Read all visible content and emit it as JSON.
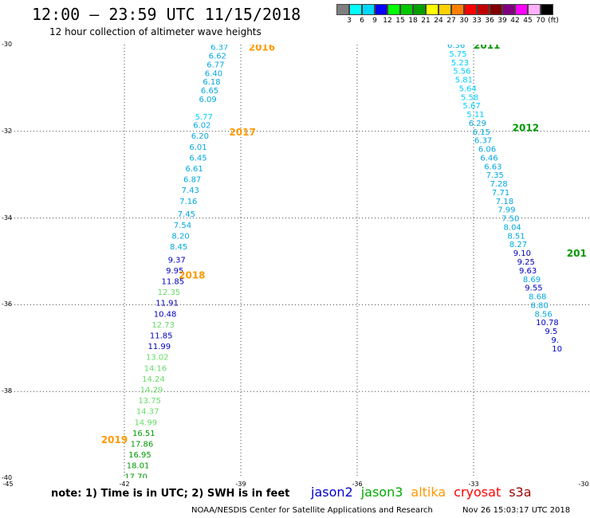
{
  "header": {
    "title": "12:00 — 23:59 UTC 11/15/2018",
    "subtitle": "12 hour collection of altimeter wave heights"
  },
  "colorbar": {
    "colors": [
      "#7f7f7f",
      "#00ffff",
      "#00d8ff",
      "#0000ff",
      "#00ff00",
      "#00c800",
      "#00a000",
      "#ffff00",
      "#ffd000",
      "#ff8000",
      "#ff0000",
      "#c00000",
      "#800000",
      "#800080",
      "#ff00ff",
      "#ffb0ff",
      "#000000"
    ],
    "labels": [
      "3",
      "6",
      "9",
      "12",
      "15",
      "18",
      "21",
      "24",
      "27",
      "30",
      "33",
      "36",
      "39",
      "42",
      "45",
      "70",
      "(ft)"
    ]
  },
  "axes": {
    "y_labels": [
      "-30",
      "-32",
      "-34",
      "-36",
      "-38",
      "-40"
    ],
    "x_labels": [
      "-45",
      "-42",
      "-39",
      "-36",
      "-33",
      "-30"
    ]
  },
  "note": "note:  1) Time is in UTC;  2) SWH is in feet",
  "legend": [
    {
      "name": "jason2",
      "color": "#0000cc"
    },
    {
      "name": "jason3",
      "color": "#00aa00"
    },
    {
      "name": "altika",
      "color": "#ff9900"
    },
    {
      "name": "cryosat",
      "color": "#ff0000"
    },
    {
      "name": "s3a",
      "color": "#990000"
    }
  ],
  "credit": "NOAA/NESDIS Center for Satellite Applications and Research",
  "timestamp": "Nov 26 15:03:17 UTC 2018",
  "map_data": {
    "lon_range": [
      -45,
      -30
    ],
    "lat_range": [
      -40,
      -30
    ],
    "time_labels": [
      {
        "text": "2016",
        "lon": -38.8,
        "lat": -30.05,
        "color": "#ff9900"
      },
      {
        "text": "2017",
        "lon": -39.3,
        "lat": -32.0,
        "color": "#ff9900"
      },
      {
        "text": "2018",
        "lon": -40.6,
        "lat": -35.3,
        "color": "#ff9900"
      },
      {
        "text": "2019",
        "lon": -42.6,
        "lat": -39.1,
        "color": "#ff9900"
      },
      {
        "text": "2011",
        "lon": -33.0,
        "lat": -30.0,
        "color": "#009900"
      },
      {
        "text": "2012",
        "lon": -32.0,
        "lat": -31.9,
        "color": "#009900"
      },
      {
        "text": "201",
        "lon": -30.6,
        "lat": -34.8,
        "color": "#009900"
      }
    ],
    "track_west": [
      {
        "v": "6.37",
        "lon": -39.55,
        "lat": -30.05,
        "c": "#00a8e0"
      },
      {
        "v": "6.62",
        "lon": -39.6,
        "lat": -30.25,
        "c": "#00a8e0"
      },
      {
        "v": "6.77",
        "lon": -39.65,
        "lat": -30.45,
        "c": "#00a8e0"
      },
      {
        "v": "6.40",
        "lon": -39.7,
        "lat": -30.65,
        "c": "#00a8e0"
      },
      {
        "v": "6.18",
        "lon": -39.75,
        "lat": -30.85,
        "c": "#00a8e0"
      },
      {
        "v": "6.65",
        "lon": -39.8,
        "lat": -31.05,
        "c": "#00a8e0"
      },
      {
        "v": "6.09",
        "lon": -39.85,
        "lat": -31.25,
        "c": "#00a8e0"
      },
      {
        "v": "5.77",
        "lon": -39.95,
        "lat": -31.65,
        "c": "#00d0ff"
      },
      {
        "v": "6.02",
        "lon": -40.0,
        "lat": -31.85,
        "c": "#00a8e0"
      },
      {
        "v": "6.20",
        "lon": -40.05,
        "lat": -32.1,
        "c": "#00a8e0"
      },
      {
        "v": "6.01",
        "lon": -40.1,
        "lat": -32.35,
        "c": "#00a8e0"
      },
      {
        "v": "6.45",
        "lon": -40.1,
        "lat": -32.6,
        "c": "#00a8e0"
      },
      {
        "v": "6.61",
        "lon": -40.2,
        "lat": -32.85,
        "c": "#00a8e0"
      },
      {
        "v": "6.87",
        "lon": -40.25,
        "lat": -33.1,
        "c": "#00a8e0"
      },
      {
        "v": "7.43",
        "lon": -40.3,
        "lat": -33.35,
        "c": "#00a8e0"
      },
      {
        "v": "7.16",
        "lon": -40.35,
        "lat": -33.6,
        "c": "#00a8e0"
      },
      {
        "v": "7.45",
        "lon": -40.4,
        "lat": -33.9,
        "c": "#00a8e0"
      },
      {
        "v": "7.54",
        "lon": -40.5,
        "lat": -34.15,
        "c": "#00a8e0"
      },
      {
        "v": "8.20",
        "lon": -40.55,
        "lat": -34.4,
        "c": "#00a8e0"
      },
      {
        "v": "8.45",
        "lon": -40.6,
        "lat": -34.65,
        "c": "#00a8e0"
      },
      {
        "v": "9.37",
        "lon": -40.65,
        "lat": -34.95,
        "c": "#0000c0"
      },
      {
        "v": "9.95",
        "lon": -40.7,
        "lat": -35.2,
        "c": "#0000c0"
      },
      {
        "v": "11.85",
        "lon": -40.75,
        "lat": -35.45,
        "c": "#0000c0"
      },
      {
        "v": "12.35",
        "lon": -40.85,
        "lat": -35.7,
        "c": "#66dd66"
      },
      {
        "v": "11.91",
        "lon": -40.9,
        "lat": -35.95,
        "c": "#0000c0"
      },
      {
        "v": "10.48",
        "lon": -40.95,
        "lat": -36.2,
        "c": "#0000c0"
      },
      {
        "v": "12.73",
        "lon": -41.0,
        "lat": -36.45,
        "c": "#66dd66"
      },
      {
        "v": "11.85",
        "lon": -41.05,
        "lat": -36.7,
        "c": "#0000c0"
      },
      {
        "v": "11.99",
        "lon": -41.1,
        "lat": -36.95,
        "c": "#0000c0"
      },
      {
        "v": "13.02",
        "lon": -41.15,
        "lat": -37.2,
        "c": "#66dd66"
      },
      {
        "v": "14.16",
        "lon": -41.2,
        "lat": -37.45,
        "c": "#66dd66"
      },
      {
        "v": "14.24",
        "lon": -41.25,
        "lat": -37.7,
        "c": "#66dd66"
      },
      {
        "v": "14.29",
        "lon": -41.3,
        "lat": -37.95,
        "c": "#66dd66"
      },
      {
        "v": "13.75",
        "lon": -41.35,
        "lat": -38.2,
        "c": "#66dd66"
      },
      {
        "v": "14.37",
        "lon": -41.4,
        "lat": -38.45,
        "c": "#66dd66"
      },
      {
        "v": "14.99",
        "lon": -41.45,
        "lat": -38.7,
        "c": "#66dd66"
      },
      {
        "v": "16.51",
        "lon": -41.5,
        "lat": -38.95,
        "c": "#009900"
      },
      {
        "v": "17.86",
        "lon": -41.55,
        "lat": -39.2,
        "c": "#009900"
      },
      {
        "v": "16.95",
        "lon": -41.6,
        "lat": -39.45,
        "c": "#009900"
      },
      {
        "v": "18.01",
        "lon": -41.65,
        "lat": -39.7,
        "c": "#009900"
      },
      {
        "v": "17.70",
        "lon": -41.7,
        "lat": -39.95,
        "c": "#009900"
      }
    ],
    "track_east": [
      {
        "v": "6.36",
        "lon": -33.45,
        "lat": -30.0,
        "c": "#00a8e0"
      },
      {
        "v": "5.75",
        "lon": -33.4,
        "lat": -30.2,
        "c": "#00d0ff"
      },
      {
        "v": "5.23",
        "lon": -33.35,
        "lat": -30.4,
        "c": "#00d0ff"
      },
      {
        "v": "5.56",
        "lon": -33.3,
        "lat": -30.6,
        "c": "#00d0ff"
      },
      {
        "v": "5.81",
        "lon": -33.25,
        "lat": -30.8,
        "c": "#00d0ff"
      },
      {
        "v": "5.64",
        "lon": -33.15,
        "lat": -31.0,
        "c": "#00d0ff"
      },
      {
        "v": "5.58",
        "lon": -33.1,
        "lat": -31.2,
        "c": "#00d0ff"
      },
      {
        "v": "5.67",
        "lon": -33.05,
        "lat": -31.4,
        "c": "#00d0ff"
      },
      {
        "v": "5.11",
        "lon": -32.95,
        "lat": -31.6,
        "c": "#00d0ff"
      },
      {
        "v": "6.29",
        "lon": -32.9,
        "lat": -31.8,
        "c": "#00a8e0"
      },
      {
        "v": "6.15",
        "lon": -32.8,
        "lat": -32.0,
        "c": "#00a8e0"
      },
      {
        "v": "6.37",
        "lon": -32.75,
        "lat": -32.2,
        "c": "#00a8e0"
      },
      {
        "v": "6.06",
        "lon": -32.65,
        "lat": -32.4,
        "c": "#00a8e0"
      },
      {
        "v": "6.46",
        "lon": -32.6,
        "lat": -32.6,
        "c": "#00a8e0"
      },
      {
        "v": "6.63",
        "lon": -32.5,
        "lat": -32.8,
        "c": "#00a8e0"
      },
      {
        "v": "7.35",
        "lon": -32.45,
        "lat": -33.0,
        "c": "#00a8e0"
      },
      {
        "v": "7.28",
        "lon": -32.35,
        "lat": -33.2,
        "c": "#00a8e0"
      },
      {
        "v": "7.71",
        "lon": -32.3,
        "lat": -33.4,
        "c": "#00a8e0"
      },
      {
        "v": "7.18",
        "lon": -32.2,
        "lat": -33.6,
        "c": "#00a8e0"
      },
      {
        "v": "7.99",
        "lon": -32.15,
        "lat": -33.8,
        "c": "#00a8e0"
      },
      {
        "v": "7.50",
        "lon": -32.05,
        "lat": -34.0,
        "c": "#00a8e0"
      },
      {
        "v": "8.04",
        "lon": -32.0,
        "lat": -34.2,
        "c": "#00a8e0"
      },
      {
        "v": "8.51",
        "lon": -31.9,
        "lat": -34.4,
        "c": "#00a8e0"
      },
      {
        "v": "8.27",
        "lon": -31.85,
        "lat": -34.6,
        "c": "#00a8e0"
      },
      {
        "v": "9.10",
        "lon": -31.75,
        "lat": -34.8,
        "c": "#0000c0"
      },
      {
        "v": "9.25",
        "lon": -31.65,
        "lat": -35.0,
        "c": "#0000c0"
      },
      {
        "v": "9.63",
        "lon": -31.6,
        "lat": -35.2,
        "c": "#0000c0"
      },
      {
        "v": "8.69",
        "lon": -31.5,
        "lat": -35.4,
        "c": "#00a8e0"
      },
      {
        "v": "9.55",
        "lon": -31.45,
        "lat": -35.6,
        "c": "#0000c0"
      },
      {
        "v": "8.68",
        "lon": -31.35,
        "lat": -35.8,
        "c": "#00a8e0"
      },
      {
        "v": "8.80",
        "lon": -31.3,
        "lat": -36.0,
        "c": "#00a8e0"
      },
      {
        "v": "8.56",
        "lon": -31.2,
        "lat": -36.2,
        "c": "#00a8e0"
      },
      {
        "v": "10.78",
        "lon": -31.1,
        "lat": -36.4,
        "c": "#0000c0"
      },
      {
        "v": "9.5",
        "lon": -31.0,
        "lat": -36.6,
        "c": "#0000c0"
      },
      {
        "v": "9.",
        "lon": -30.9,
        "lat": -36.8,
        "c": "#0000c0"
      },
      {
        "v": "10",
        "lon": -30.85,
        "lat": -37.0,
        "c": "#0000c0"
      }
    ]
  }
}
